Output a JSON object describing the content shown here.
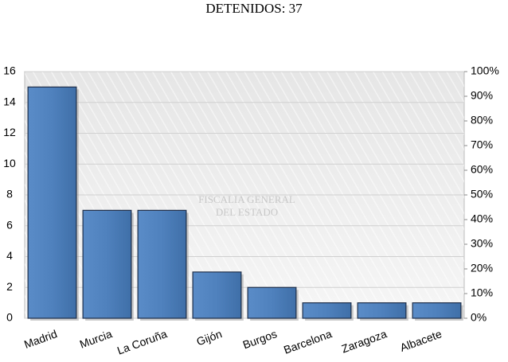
{
  "chart_data": {
    "type": "bar",
    "title": "DETENIDOS: 37",
    "watermark": [
      "FISCALIA GENERAL",
      "DEL ESTADO"
    ],
    "categories": [
      "Madrid",
      "Murcia",
      "La Coruña",
      "Gijón",
      "Burgos",
      "Barcelona",
      "Zaragoza",
      "Albacete"
    ],
    "values": [
      15,
      7,
      7,
      3,
      2,
      1,
      1,
      1
    ],
    "color": "#4f81bd",
    "ylim": [
      0,
      16
    ],
    "yticks": [
      0,
      2,
      4,
      6,
      8,
      10,
      12,
      14,
      16
    ],
    "y2lim": [
      0,
      100
    ],
    "y2ticks": [
      {
        "value": 0,
        "label": "0%"
      },
      {
        "value": 10,
        "label": "10%"
      },
      {
        "value": 20,
        "label": "20%"
      },
      {
        "value": 30,
        "label": "30%"
      },
      {
        "value": 40,
        "label": "40%"
      },
      {
        "value": 50,
        "label": "50%"
      },
      {
        "value": 60,
        "label": "60%"
      },
      {
        "value": 70,
        "label": "70%"
      },
      {
        "value": 80,
        "label": "80%"
      },
      {
        "value": 90,
        "label": "90%"
      },
      {
        "value": 100,
        "label": "100%"
      }
    ],
    "grid": true
  }
}
